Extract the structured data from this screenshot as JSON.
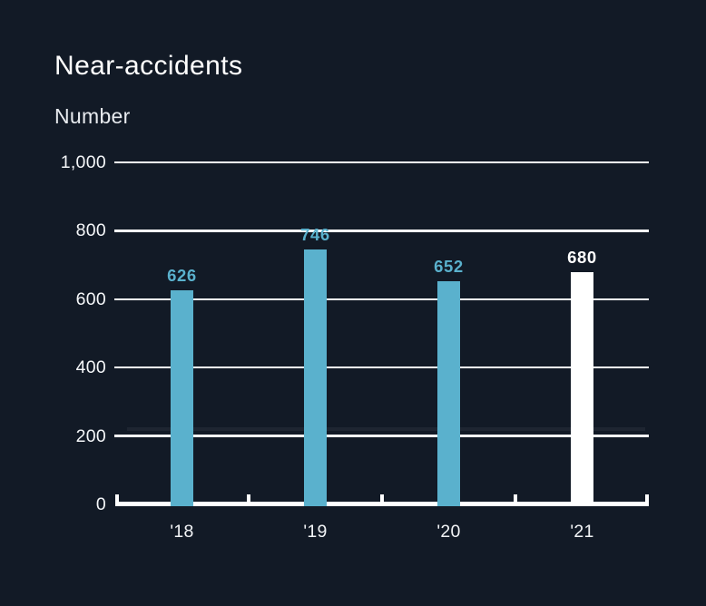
{
  "header": {
    "title": "Near-accidents",
    "unit_label": "Number"
  },
  "colors": {
    "background": "#121a26",
    "axis": "#ffffff",
    "bar_teal": "#5ab1cd",
    "bar_white": "#ffffff",
    "reference_line": "rgba(255,255,255,0.05)"
  },
  "chart_data": {
    "type": "bar",
    "title": "Near-accidents",
    "ylabel": "Number",
    "xlabel": "",
    "categories": [
      "'18",
      "'19",
      "'20",
      "'21"
    ],
    "values": [
      626,
      746,
      652,
      680
    ],
    "value_labels": [
      "626",
      "746",
      "652",
      "680"
    ],
    "bar_colors": [
      "#5ab1cd",
      "#5ab1cd",
      "#5ab1cd",
      "#ffffff"
    ],
    "label_colors": [
      "#5ab1cd",
      "#5ab1cd",
      "#5ab1cd",
      "#ffffff"
    ],
    "yticks": [
      0,
      200,
      400,
      600,
      800,
      1000
    ],
    "ytick_labels": [
      "0",
      "200",
      "400",
      "600",
      "800",
      "1,000"
    ],
    "ylim": [
      0,
      1000
    ],
    "grid": "horizontal",
    "legend": "none",
    "reference_line_value": 220
  }
}
